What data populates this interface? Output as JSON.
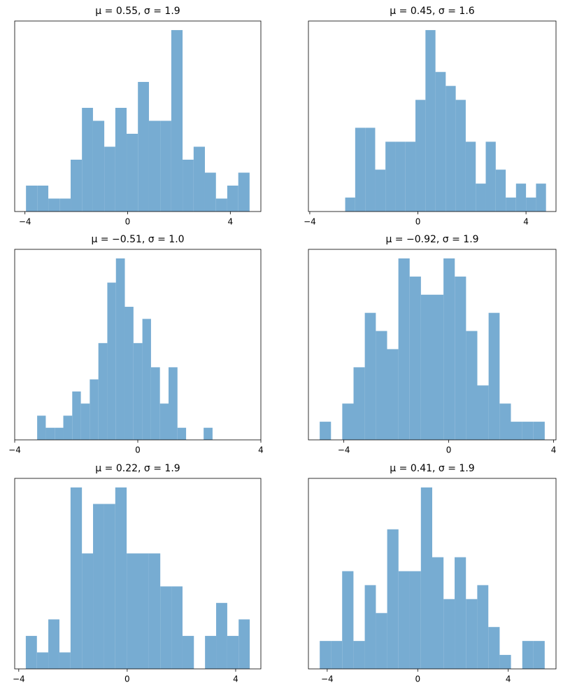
{
  "chart_data": [
    {
      "type": "histogram",
      "title": "μ = 0.55,    σ = 1.9",
      "color": "#77acd2",
      "bins": [
        -3.96,
        -3.52,
        -3.09,
        -2.65,
        -2.22,
        -1.78,
        -1.35,
        -0.91,
        -0.48,
        -0.04,
        0.4,
        0.83,
        1.27,
        1.7,
        2.14,
        2.57,
        3.01,
        3.44,
        3.88,
        4.31,
        4.75
      ],
      "values": [
        2,
        2,
        1,
        1,
        4,
        8,
        7,
        5,
        8,
        6,
        10,
        7,
        7,
        14,
        4,
        5,
        3,
        1,
        2,
        3
      ],
      "xlim": [
        -4.4,
        5.19
      ],
      "ylim": [
        0,
        14.7
      ],
      "xticks": [
        {
          "value": -4,
          "label": "−4"
        },
        0,
        4
      ]
    },
    {
      "type": "histogram",
      "title": "μ = 0.45,    σ = 1.6",
      "color": "#77acd2",
      "bins": [
        -2.69,
        -2.32,
        -1.95,
        -1.58,
        -1.2,
        -0.83,
        -0.46,
        -0.09,
        0.28,
        0.65,
        1.03,
        1.4,
        1.77,
        2.14,
        2.51,
        2.88,
        3.25,
        3.63,
        4.0,
        4.37,
        4.74
      ],
      "values": [
        1,
        6,
        6,
        3,
        5,
        5,
        5,
        8,
        13,
        10,
        9,
        8,
        5,
        2,
        5,
        3,
        1,
        2,
        1,
        2
      ],
      "xlim": [
        -4.05,
        5.11
      ],
      "ylim": [
        0,
        13.65
      ],
      "xticks": [
        {
          "value": -4,
          "label": "−4"
        },
        0,
        4
      ]
    },
    {
      "type": "histogram",
      "title": "μ = −0.51,    σ = 1.0",
      "color": "#77acd2",
      "bins": [
        -3.27,
        -2.99,
        -2.7,
        -2.42,
        -2.13,
        -1.85,
        -1.56,
        -1.28,
        -0.99,
        -0.71,
        -0.42,
        -0.14,
        0.15,
        0.43,
        0.72,
        1.0,
        1.29,
        1.57,
        1.86,
        2.14,
        2.43
      ],
      "values": [
        2,
        1,
        1,
        2,
        4,
        3,
        5,
        8,
        13,
        15,
        11,
        8,
        10,
        6,
        3,
        6,
        1,
        0,
        0,
        1
      ],
      "xlim": [
        -4,
        4
      ],
      "ylim": [
        0,
        15.75
      ],
      "xticks": [
        {
          "value": -4,
          "label": "−4"
        },
        0,
        4
      ]
    },
    {
      "type": "histogram",
      "title": "μ = −0.92,    σ = 1.9",
      "color": "#77acd2",
      "bins": [
        -4.92,
        -4.49,
        -4.06,
        -3.63,
        -3.2,
        -2.78,
        -2.35,
        -1.92,
        -1.49,
        -1.06,
        -0.63,
        -0.2,
        0.23,
        0.66,
        1.09,
        1.52,
        1.94,
        2.37,
        2.8,
        3.23,
        3.66
      ],
      "values": [
        1,
        0,
        2,
        4,
        7,
        6,
        5,
        10,
        9,
        8,
        8,
        10,
        9,
        6,
        3,
        7,
        2,
        1,
        1,
        1
      ],
      "xlim": [
        -5.35,
        4.09
      ],
      "ylim": [
        0,
        10.5
      ],
      "xticks": [
        {
          "value": -4,
          "label": "−4"
        },
        0,
        4
      ]
    },
    {
      "type": "histogram",
      "title": "μ = 0.22,    σ = 1.9",
      "color": "#77acd2",
      "bins": [
        -3.74,
        -3.33,
        -2.91,
        -2.5,
        -2.09,
        -1.67,
        -1.26,
        -0.85,
        -0.44,
        -0.02,
        0.39,
        0.8,
        1.22,
        1.63,
        2.04,
        2.46,
        2.87,
        3.28,
        3.69,
        4.11,
        4.52
      ],
      "values": [
        2,
        1,
        3,
        1,
        11,
        7,
        10,
        10,
        11,
        7,
        7,
        7,
        5,
        5,
        2,
        0,
        2,
        4,
        2,
        3
      ],
      "xlim": [
        -4.15,
        4.93
      ],
      "ylim": [
        0,
        11.55
      ],
      "xticks": [
        {
          "value": -4,
          "label": "−4"
        },
        0,
        4
      ]
    },
    {
      "type": "histogram",
      "title": "μ = 0.41,    σ = 1.9",
      "color": "#77acd2",
      "bins": [
        -4.33,
        -3.83,
        -3.34,
        -2.84,
        -2.34,
        -1.85,
        -1.35,
        -0.85,
        -0.35,
        0.14,
        0.64,
        1.14,
        1.63,
        2.13,
        2.63,
        3.12,
        3.62,
        4.12,
        4.62,
        5.11,
        5.61
      ],
      "values": [
        2,
        2,
        7,
        2,
        6,
        4,
        10,
        7,
        7,
        13,
        8,
        5,
        8,
        5,
        6,
        3,
        1,
        0,
        2,
        2
      ],
      "xlim": [
        -4.83,
        6.11
      ],
      "ylim": [
        0,
        13.65
      ],
      "xticks": [
        {
          "value": -4,
          "label": "−4"
        },
        0,
        4
      ]
    }
  ]
}
